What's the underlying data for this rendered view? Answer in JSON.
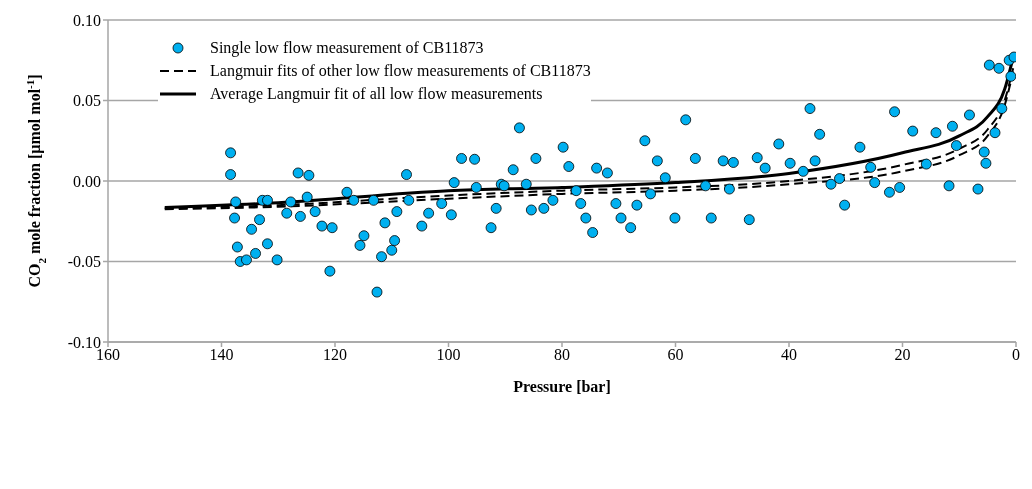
{
  "chart_data": {
    "type": "scatter",
    "xlabel": "Pressure [bar]",
    "ylabel": "CO$_{2}$ mole fraction [µmol mol$^{-1}$]",
    "xlim": [
      160,
      0
    ],
    "xticks": [
      160,
      140,
      120,
      100,
      80,
      60,
      40,
      20,
      0
    ],
    "ylim": [
      -0.1,
      0.1
    ],
    "yticks": [
      {
        "value": -0.1,
        "label": "-0.10"
      },
      {
        "value": -0.05,
        "label": "-0.05"
      },
      {
        "value": 0,
        "label": "0.00"
      },
      {
        "value": 0.05,
        "label": "0.05"
      },
      {
        "value": 0.1,
        "label": "0.10"
      }
    ],
    "grid": "y",
    "legend": "top left",
    "series": [
      {
        "name": "Single low flow measurement of CB11873",
        "marker": "circle",
        "color": "#00b0f0",
        "x": [
          138.4,
          138.4,
          137.7,
          136.7,
          137.2,
          135.6,
          137.5,
          134.7,
          134,
          133.3,
          132.8,
          131.9,
          131.9,
          130.2,
          128.5,
          127.8,
          126.5,
          126.1,
          124.9,
          124.6,
          123.5,
          122.3,
          120.9,
          120.5,
          117.9,
          116.7,
          115.6,
          114.9,
          113.2,
          112.6,
          111.8,
          111.2,
          110,
          109.5,
          109.1,
          107.4,
          107,
          104.7,
          103.5,
          101.2,
          99.5,
          99,
          97.7,
          95.4,
          95.1,
          92.5,
          91.6,
          90.7,
          90.2,
          88.6,
          87.5,
          86.3,
          85.4,
          84.6,
          83.2,
          81.6,
          79.8,
          78.8,
          77.5,
          76.7,
          75.8,
          74.6,
          73.9,
          72,
          70.5,
          69.6,
          67.9,
          66.8,
          65.4,
          64.4,
          63.2,
          61.8,
          60.1,
          58.2,
          56.5,
          54.7,
          53.7,
          51.6,
          50.5,
          49.8,
          47,
          45.6,
          44.2,
          41.8,
          39.8,
          37.5,
          36.3,
          35.4,
          34.6,
          32.6,
          31.1,
          30.2,
          27.5,
          25.6,
          24.9,
          22.3,
          21.4,
          20.5,
          18.2,
          15.8,
          14.1,
          11.8,
          11.2,
          10.5,
          8.2,
          6.7,
          5.6,
          4.7,
          3,
          1.2,
          0.35,
          0.9,
          2.5,
          3.7,
          5.3
        ],
        "values": [
          0.0175,
          0.004,
          -0.023,
          -0.05,
          -0.041,
          -0.049,
          -0.013,
          -0.03,
          -0.045,
          -0.024,
          -0.012,
          -0.039,
          -0.012,
          -0.049,
          -0.02,
          -0.013,
          0.005,
          -0.022,
          -0.01,
          0.0035,
          -0.019,
          -0.028,
          -0.056,
          -0.029,
          -0.007,
          -0.012,
          -0.04,
          -0.034,
          -0.012,
          -0.069,
          -0.047,
          -0.026,
          -0.043,
          -0.037,
          -0.019,
          0.004,
          -0.012,
          -0.028,
          -0.02,
          -0.014,
          -0.021,
          -0.001,
          0.014,
          0.0135,
          -0.004,
          -0.029,
          -0.017,
          -0.002,
          -0.003,
          0.007,
          0.033,
          -0.002,
          -0.018,
          0.014,
          -0.017,
          -0.012,
          0.021,
          0.009,
          -0.006,
          -0.014,
          -0.023,
          -0.032,
          0.008,
          0.005,
          -0.014,
          -0.023,
          -0.029,
          -0.015,
          0.025,
          -0.008,
          0.0125,
          0.002,
          -0.023,
          0.038,
          0.014,
          -0.003,
          -0.023,
          0.0125,
          -0.005,
          0.0115,
          -0.024,
          0.0145,
          0.008,
          0.023,
          0.011,
          0.006,
          0.045,
          0.0125,
          0.029,
          -0.002,
          0.0015,
          -0.015,
          0.021,
          0.0085,
          -0.001,
          -0.007,
          0.043,
          -0.004,
          0.031,
          0.0105,
          0.03,
          -0.003,
          0.034,
          0.022,
          0.041,
          -0.005,
          0.018,
          0.072,
          0.07,
          0.075,
          0.077,
          0.065,
          0.045,
          0.03,
          0.011
        ]
      },
      {
        "name": "Langmuir fits of other low flow measurements of CB11873",
        "type": "line",
        "marker": "none",
        "line_style": "dashed",
        "color": "#000000",
        "x": [
          150,
          130,
          100,
          80,
          60,
          40,
          20,
          10,
          5,
          2,
          0.5
        ],
        "values": [
          -0.017,
          -0.015,
          -0.009,
          -0.006,
          -0.004,
          0,
          0.01,
          0.02,
          0.032,
          0.05,
          0.07
        ]
      },
      {
        "type": "line",
        "marker": "none",
        "line_style": "dashed",
        "color": "#000000",
        "x": [
          150,
          130,
          100,
          80,
          60,
          40,
          20,
          10,
          5,
          2,
          0.5
        ],
        "values": [
          -0.0175,
          -0.016,
          -0.011,
          -0.008,
          -0.006,
          -0.002,
          0.006,
          0.016,
          0.028,
          0.047,
          0.068
        ]
      },
      {
        "name": "Average Langmuir fit of all low flow measurements",
        "type": "line",
        "marker": "none",
        "line_style": "solid",
        "color": "#000000",
        "x": [
          150,
          130,
          100,
          80,
          60,
          40,
          20,
          10,
          5,
          2,
          0.5
        ],
        "values": [
          -0.0165,
          -0.0135,
          -0.006,
          -0.004,
          -0.001,
          0.0047,
          0.0175,
          0.028,
          0.04,
          0.057,
          0.077
        ]
      }
    ]
  }
}
